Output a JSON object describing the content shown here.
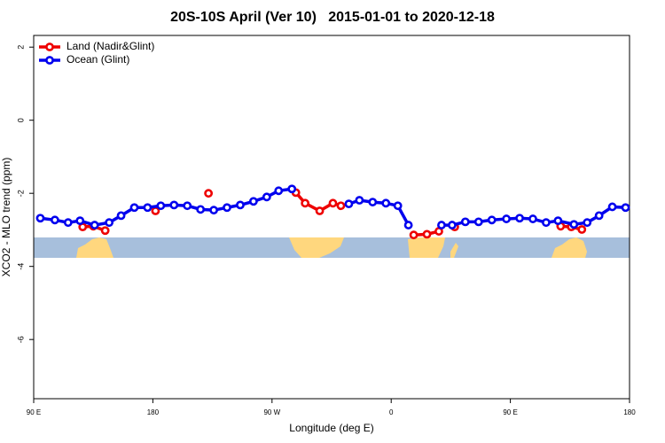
{
  "chart_data": {
    "type": "line",
    "title": "20S-10S April (Ver 10)   2015-01-01 to 2020-12-18",
    "x_label": "Longitude (deg E)",
    "y_label": "XCO2 - MLO trend (ppm)",
    "xlim": [
      90,
      540
    ],
    "xticks": [
      {
        "value": 90,
        "label": "90 E"
      },
      180,
      {
        "value": 270,
        "label": "90 W"
      },
      {
        "value": 360,
        "label": "0"
      },
      {
        "value": 450,
        "label": "90 E"
      },
      {
        "value": 540,
        "label": "180"
      }
    ],
    "ylim": [
      -7.62,
      2.32
    ],
    "yticks": [
      2,
      0,
      -2,
      -4,
      -6
    ],
    "legend": "topleft",
    "series": [
      {
        "name": "Land (Nadir&Glint)",
        "color": "#ee0000",
        "x": [
          127,
          135,
          144,
          160,
          182,
          200,
          222,
          250,
          288,
          295,
          306,
          316,
          322,
          350,
          377,
          387,
          396,
          402,
          408,
          450,
          488,
          496,
          504
        ],
        "values": [
          -2.92,
          -2.9,
          -3.02,
          null,
          -2.48,
          null,
          -2.0,
          null,
          -1.98,
          -2.27,
          -2.48,
          -2.27,
          -2.34,
          null,
          -3.14,
          -3.12,
          -3.04,
          null,
          -2.92,
          null,
          -2.9,
          -2.92,
          -2.99
        ]
      },
      {
        "name": "Ocean (Glint)",
        "color": "#0000ee",
        "x": [
          95,
          106,
          116,
          125,
          136,
          147,
          156,
          166,
          176,
          186,
          196,
          206,
          216,
          226,
          236,
          246,
          256,
          266,
          275,
          285,
          306,
          328,
          336,
          346,
          356,
          365,
          373,
          387,
          398,
          406,
          416,
          426,
          436,
          447,
          457,
          467,
          477,
          486,
          498,
          508,
          517,
          527,
          537
        ],
        "values": [
          -2.68,
          -2.73,
          -2.8,
          -2.75,
          -2.87,
          -2.8,
          -2.61,
          -2.39,
          -2.39,
          -2.34,
          -2.32,
          -2.34,
          -2.44,
          -2.46,
          -2.39,
          -2.32,
          -2.22,
          -2.1,
          -1.93,
          -1.88,
          null,
          -2.29,
          -2.19,
          -2.24,
          -2.27,
          -2.34,
          -2.87,
          null,
          -2.87,
          -2.87,
          -2.78,
          -2.78,
          -2.73,
          -2.7,
          -2.68,
          -2.7,
          -2.8,
          -2.75,
          -2.85,
          -2.8,
          -2.61,
          -2.37,
          -2.39
        ]
      }
    ]
  }
}
